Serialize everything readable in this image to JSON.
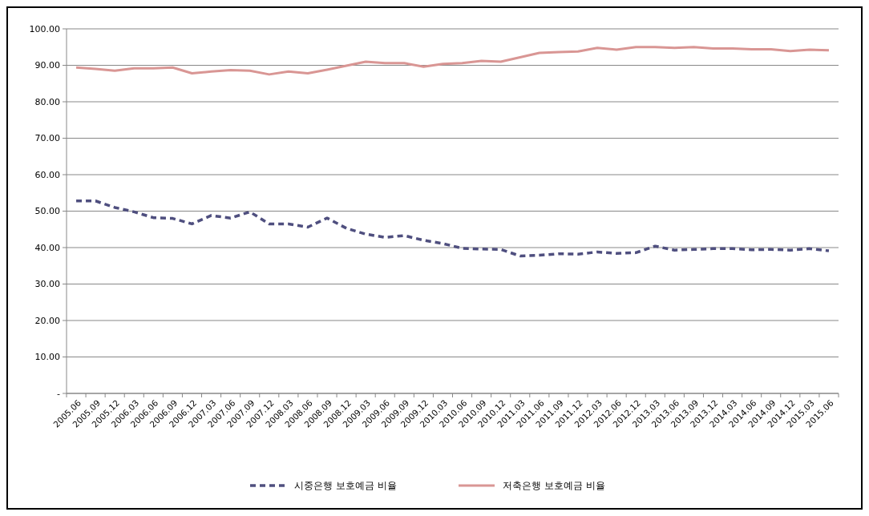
{
  "chart_data": {
    "type": "line",
    "categories": [
      "2005.06",
      "2005.09",
      "2005.12",
      "2006.03",
      "2006.06",
      "2006.09",
      "2006.12",
      "2007.03",
      "2007.06",
      "2007.09",
      "2007.12",
      "2008.03",
      "2008.06",
      "2008.09",
      "2008.12",
      "2009.03",
      "2009.06",
      "2009.09",
      "2009.12",
      "2010.03",
      "2010.06",
      "2010.09",
      "2010.12",
      "2011.03",
      "2011.06",
      "2011.09",
      "2011.12",
      "2012.03",
      "2012.06",
      "2012.12",
      "2013.03",
      "2013.06",
      "2013.09",
      "2013.12",
      "2014.03",
      "2014.06",
      "2014.09",
      "2014.12",
      "2015.03",
      "2015.06"
    ],
    "series": [
      {
        "name": "시중은행 보호예금 비율",
        "color": "#4f4f7f",
        "line_style": "dashed",
        "values": [
          52.8,
          52.8,
          51.0,
          49.8,
          48.2,
          48.0,
          46.5,
          48.8,
          48.1,
          49.8,
          46.5,
          46.5,
          45.6,
          48.1,
          45.3,
          43.7,
          42.8,
          43.3,
          42.0,
          41.1,
          39.8,
          39.6,
          39.5,
          37.7,
          37.9,
          38.3,
          38.2,
          38.8,
          38.4,
          38.6,
          40.4,
          39.3,
          39.5,
          39.7,
          39.7,
          39.4,
          39.5,
          39.3,
          39.7,
          39.1
        ]
      },
      {
        "name": "저축은행 보호예금 비율",
        "color": "#d99694",
        "line_style": "solid",
        "values": [
          89.4,
          89.0,
          88.5,
          89.2,
          89.2,
          89.4,
          87.8,
          88.3,
          88.7,
          88.5,
          87.5,
          88.3,
          87.8,
          88.8,
          89.9,
          91.0,
          90.6,
          90.6,
          89.6,
          90.4,
          90.6,
          91.2,
          91.0,
          92.2,
          93.4,
          93.6,
          93.8,
          94.8,
          94.3,
          95.0,
          95.0,
          94.8,
          95.0,
          94.6,
          94.6,
          94.4,
          94.4,
          93.9,
          94.3,
          94.1
        ]
      }
    ],
    "ylim": [
      0,
      100
    ],
    "yticks": [
      {
        "value": 0,
        "label": "-"
      },
      {
        "value": 10,
        "label": "10.00"
      },
      {
        "value": 20,
        "label": "20.00"
      },
      {
        "value": 30,
        "label": "30.00"
      },
      {
        "value": 40,
        "label": "40.00"
      },
      {
        "value": 50,
        "label": "50.00"
      },
      {
        "value": 60,
        "label": "60.00"
      },
      {
        "value": 70,
        "label": "70.00"
      },
      {
        "value": 80,
        "label": "80.00"
      },
      {
        "value": 90,
        "label": "90.00"
      },
      {
        "value": 100,
        "label": "100.00"
      }
    ],
    "grid": "y",
    "legend": "bottom",
    "marker": "none"
  }
}
